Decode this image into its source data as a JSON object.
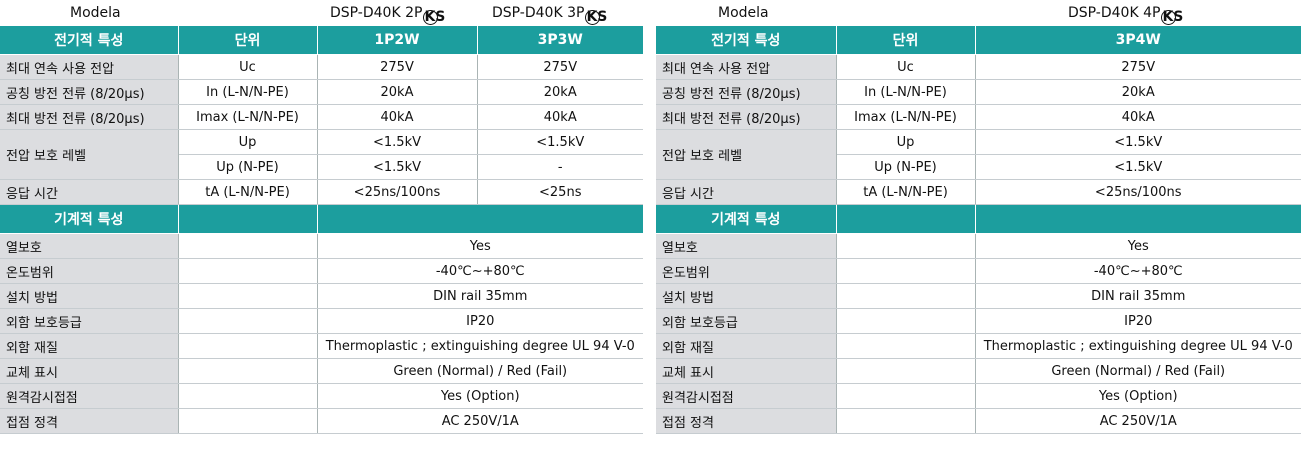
{
  "left": {
    "model_label": "Modela",
    "models": [
      "DSP-D40K 2P",
      "DSP-D40K 3P"
    ],
    "header": [
      "전기적 특성",
      "단위",
      "1P2W",
      "3P3W"
    ],
    "electrical_rows": [
      {
        "label": "최대 연속 사용 전압",
        "unit": "Uc",
        "v1": "275V",
        "v2": "275V"
      },
      {
        "label": "공칭 방전 전류 (8/20μs)",
        "unit": "In (L-N/N-PE)",
        "v1": "20kA",
        "v2": "20kA"
      },
      {
        "label": "최대 방전 전류 (8/20μs)",
        "unit": "Imax (L-N/N-PE)",
        "v1": "40kA",
        "v2": "40kA"
      }
    ],
    "protection": {
      "label": "전압 보호 레벨",
      "unit1": "Up",
      "v1a": "<1.5kV",
      "v1b": "<1.5kV",
      "unit2": "Up (N-PE)",
      "v2a": "<1.5kV",
      "v2b": "-"
    },
    "response": {
      "label": "응답 시간",
      "unit": "tA (L-N/N-PE)",
      "v1": "<25ns/100ns",
      "v2": "<25ns"
    },
    "mech_header": "기계적 특성",
    "mech_rows": [
      {
        "label": "열보호",
        "value": "Yes"
      },
      {
        "label": "온도범위",
        "value": "-40℃~+80℃"
      },
      {
        "label": "설치 방법",
        "value": "DIN rail 35mm"
      },
      {
        "label": "외함 보호등급",
        "value": "IP20"
      },
      {
        "label": "외함 재질",
        "value": "Thermoplastic ; extinguishing degree UL 94 V-0"
      },
      {
        "label": "교체 표시",
        "value": "Green (Normal) / Red (Fail)"
      },
      {
        "label": "원격감시접점",
        "value": "Yes (Option)"
      },
      {
        "label": "접점 정격",
        "value": "AC 250V/1A"
      }
    ]
  },
  "right": {
    "model_label": "Modela",
    "models": [
      "DSP-D40K 4P"
    ],
    "header": [
      "전기적 특성",
      "단위",
      "3P4W"
    ],
    "electrical_rows": [
      {
        "label": "최대 연속 사용 전압",
        "unit": "Uc",
        "v1": "275V"
      },
      {
        "label": "공칭 방전 전류 (8/20μs)",
        "unit": "In (L-N/N-PE)",
        "v1": "20kA"
      },
      {
        "label": "최대 방전 전류 (8/20μs)",
        "unit": "Imax (L-N/N-PE)",
        "v1": "40kA"
      }
    ],
    "protection": {
      "label": "전압 보호 레벨",
      "unit1": "Up",
      "v1a": "<1.5kV",
      "unit2": "Up (N-PE)",
      "v2a": "<1.5kV"
    },
    "response": {
      "label": "응답 시간",
      "unit": "tA (L-N/N-PE)",
      "v1": "<25ns/100ns"
    },
    "mech_header": "기계적 특성",
    "mech_rows": [
      {
        "label": "열보호",
        "value": "Yes"
      },
      {
        "label": "온도범위",
        "value": "-40℃~+80℃"
      },
      {
        "label": "설치 방법",
        "value": "DIN rail 35mm"
      },
      {
        "label": "외함 보호등급",
        "value": "IP20"
      },
      {
        "label": "외함 재질",
        "value": "Thermoplastic ; extinguishing degree UL 94 V-0"
      },
      {
        "label": "교체 표시",
        "value": "Green (Normal) / Red (Fail)"
      },
      {
        "label": "원격감시접점",
        "value": "Yes (Option)"
      },
      {
        "label": "접점 정격",
        "value": "AC 250V/1A"
      }
    ]
  },
  "ks_mark": "KS",
  "colors": {
    "header": "#1c9e9e",
    "label_bg": "#dcdde0"
  }
}
